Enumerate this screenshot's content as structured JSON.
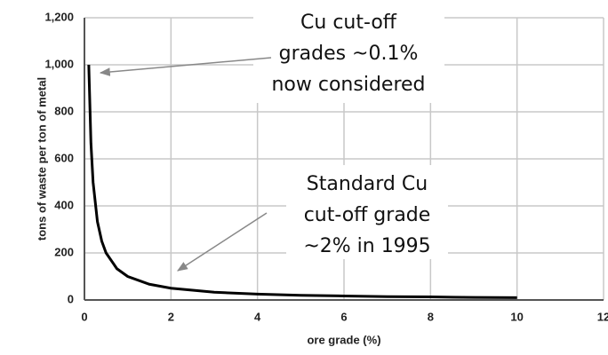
{
  "chart_data": {
    "type": "line",
    "xlabel": "ore grade (%)",
    "ylabel": "tons of waste per ton of metal",
    "x": [
      0.1,
      0.15,
      0.2,
      0.3,
      0.4,
      0.5,
      0.75,
      1,
      1.5,
      2,
      3,
      4,
      5,
      6,
      7,
      8,
      9,
      10
    ],
    "values": [
      1000,
      667,
      500,
      333,
      250,
      200,
      133,
      100,
      67,
      50,
      33,
      25,
      20,
      17,
      14,
      13,
      11,
      10
    ],
    "color": "#000000",
    "xlim": [
      0,
      12
    ],
    "xticks": [
      0,
      2,
      4,
      6,
      8,
      10,
      12
    ],
    "ylim": [
      0,
      1200
    ],
    "yticks": [
      0,
      200,
      400,
      600,
      800,
      {
        "value": 1000,
        "label": "1,000"
      },
      {
        "value": 1200,
        "label": "1,200"
      }
    ],
    "grid": true,
    "annotations": [
      {
        "lines": [
          "Cu cut-off",
          "grades ~0.1%",
          "now considered"
        ]
      },
      {
        "lines": [
          "Standard Cu",
          "cut-off grade",
          "~2% in 1995"
        ]
      }
    ]
  }
}
